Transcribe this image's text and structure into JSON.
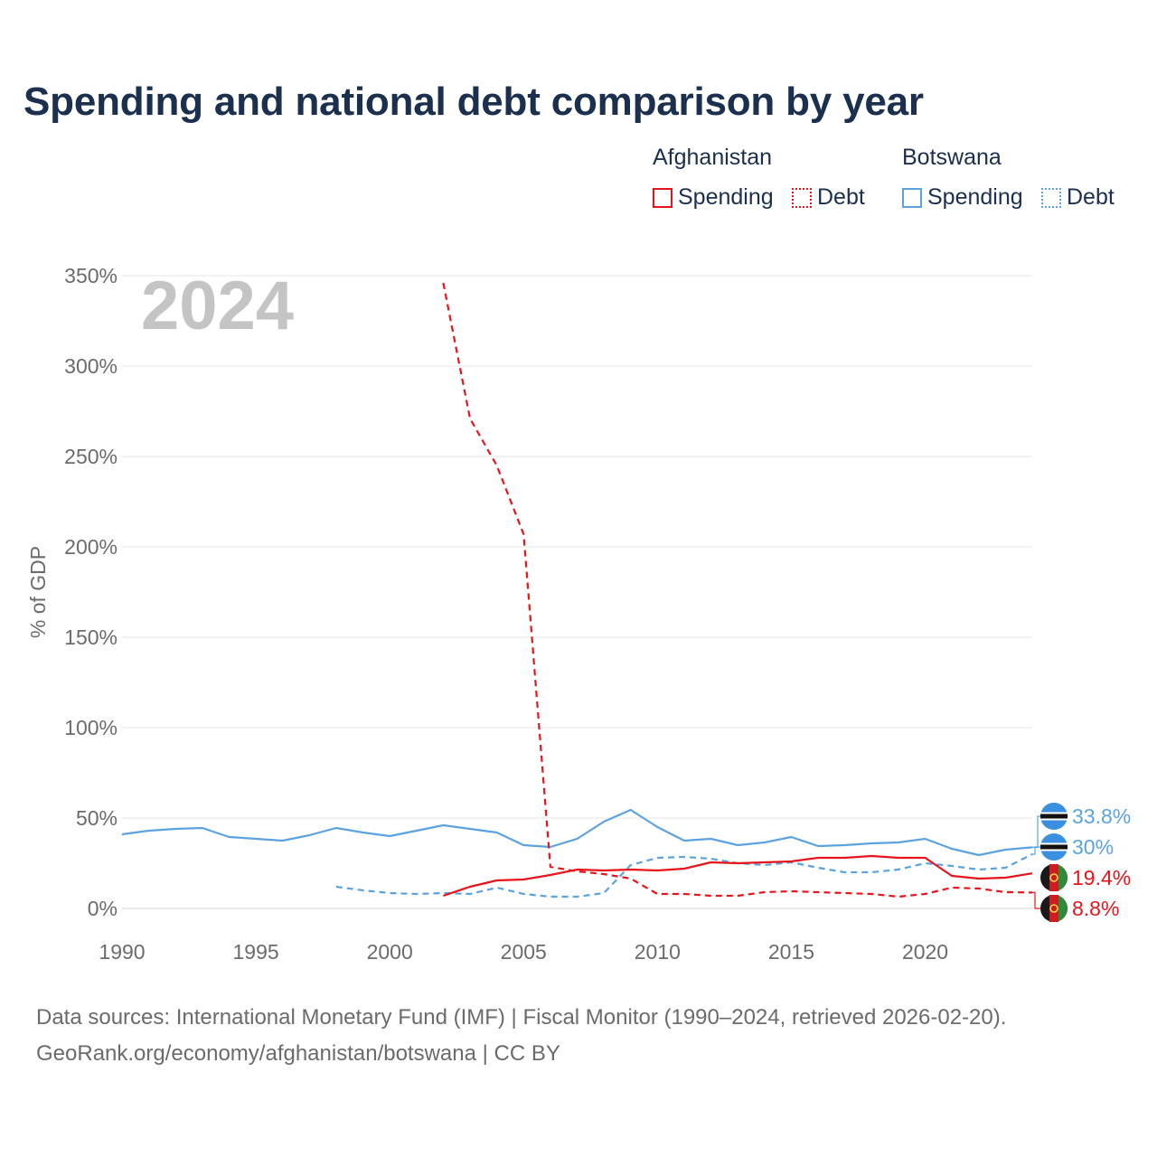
{
  "title": "Spending and national debt comparison by year",
  "legend": {
    "groups": [
      {
        "country": "Afghanistan",
        "items": [
          {
            "label": "Spending",
            "style": "solid"
          },
          {
            "label": "Debt",
            "style": "dotted"
          }
        ],
        "color": "#e8141b"
      },
      {
        "country": "Botswana",
        "items": [
          {
            "label": "Spending",
            "style": "solid"
          },
          {
            "label": "Debt",
            "style": "dotted"
          }
        ],
        "color": "#5ba3e0"
      }
    ]
  },
  "footer": {
    "line1": "Data sources: International Monetary Fund (IMF) | Fiscal Monitor (1990–2024, retrieved 2026-02-20).",
    "line2": "GeoRank.org/economy/afghanistan/botswana | CC BY"
  },
  "colors": {
    "afghanistan": "#e8141b",
    "botswana": "#5ba3e0",
    "grid": "#e6e6e6",
    "title": "#1b2f4f"
  },
  "chart_data": {
    "type": "line",
    "year_label": "2024",
    "ylabel": "% of GDP",
    "xlim": [
      1990,
      2024
    ],
    "ylim": [
      0,
      350
    ],
    "x_ticks": [
      1990,
      1995,
      2000,
      2005,
      2010,
      2015,
      2020
    ],
    "x_tick_labels": [
      "1990",
      "1995",
      "2000",
      "2005",
      "2010",
      "2015",
      "2020"
    ],
    "y_ticks": [
      0,
      50,
      100,
      150,
      200,
      250,
      300,
      350
    ],
    "y_tick_labels": [
      "0%",
      "50%",
      "100%",
      "150%",
      "200%",
      "250%",
      "300%",
      "350%"
    ],
    "series": [
      {
        "name": "Botswana Spending",
        "country": "botswana",
        "dash": false,
        "x": [
          1990,
          1991,
          1992,
          1993,
          1994,
          1995,
          1996,
          1997,
          1998,
          1999,
          2000,
          2001,
          2002,
          2003,
          2004,
          2005,
          2006,
          2007,
          2008,
          2009,
          2010,
          2011,
          2012,
          2013,
          2014,
          2015,
          2016,
          2017,
          2018,
          2019,
          2020,
          2021,
          2022,
          2023,
          2024
        ],
        "y": [
          41,
          43,
          44,
          44.5,
          39.5,
          38.5,
          37.5,
          40.5,
          44.5,
          42,
          40,
          43,
          46,
          44,
          42,
          35,
          34,
          38.5,
          48,
          54.5,
          45,
          37.5,
          38.5,
          35,
          36.5,
          39.5,
          34.5,
          35,
          36,
          36.5,
          38.5,
          33,
          29.5,
          32.5,
          33.8
        ]
      },
      {
        "name": "Botswana Debt",
        "country": "botswana",
        "dash": true,
        "x": [
          1998,
          1999,
          2000,
          2001,
          2002,
          2003,
          2004,
          2005,
          2006,
          2007,
          2008,
          2009,
          2010,
          2011,
          2012,
          2013,
          2014,
          2015,
          2016,
          2017,
          2018,
          2019,
          2020,
          2021,
          2022,
          2023,
          2024
        ],
        "y": [
          12,
          10,
          8.5,
          8,
          8.5,
          8,
          11.5,
          8,
          6.5,
          6.5,
          8.5,
          24,
          28,
          28.5,
          27.5,
          25,
          24,
          25.5,
          22.5,
          20,
          20,
          21.5,
          25,
          23.5,
          21.5,
          22.5,
          30
        ]
      },
      {
        "name": "Afghanistan Spending",
        "country": "afghanistan",
        "dash": false,
        "x": [
          2002,
          2003,
          2004,
          2005,
          2006,
          2007,
          2008,
          2009,
          2010,
          2011,
          2012,
          2013,
          2014,
          2015,
          2016,
          2017,
          2018,
          2019,
          2020,
          2021,
          2022,
          2023,
          2024
        ],
        "y": [
          7,
          12,
          15.5,
          16,
          18.5,
          21.5,
          21,
          21.5,
          21,
          22,
          25.5,
          25,
          25.5,
          26,
          28,
          28,
          29,
          28,
          28,
          18,
          16.5,
          17,
          19.4
        ]
      },
      {
        "name": "Afghanistan Debt",
        "country": "afghanistan",
        "dash": true,
        "x": [
          2002,
          2003,
          2004,
          2005,
          2006,
          2007,
          2008,
          2009,
          2010,
          2011,
          2012,
          2013,
          2014,
          2015,
          2016,
          2017,
          2018,
          2019,
          2020,
          2021,
          2022,
          2023,
          2024
        ],
        "y": [
          346,
          271,
          245,
          207,
          23,
          20.5,
          19,
          16.5,
          8,
          8,
          7,
          7,
          9,
          9.5,
          9,
          8.5,
          8,
          6.5,
          8,
          11.5,
          11,
          9,
          8.8
        ]
      }
    ],
    "end_labels": [
      {
        "text": "33.8%",
        "country": "botswana"
      },
      {
        "text": "30%",
        "country": "botswana"
      },
      {
        "text": "19.4%",
        "country": "afghanistan"
      },
      {
        "text": "8.8%",
        "country": "afghanistan"
      }
    ]
  }
}
